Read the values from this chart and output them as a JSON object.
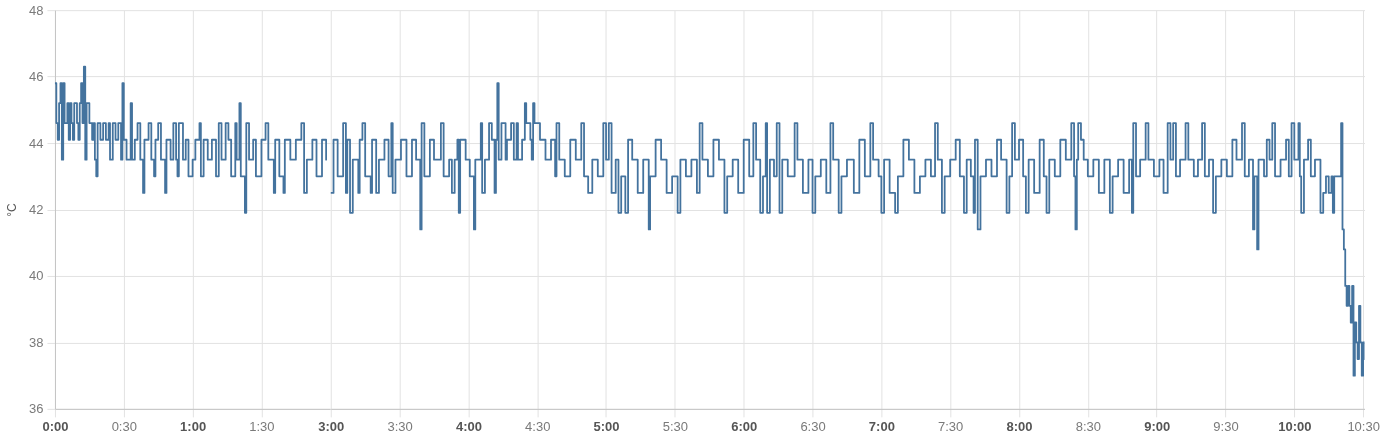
{
  "chart_data": [
    {
      "type": "step",
      "ylabel": "°C",
      "x": [
        0,
        0.01,
        0.02,
        0.03,
        0.04,
        0.05,
        0.06,
        0.07,
        0.09,
        0.1,
        0.11,
        0.12,
        0.13,
        0.14,
        0.16,
        0.17,
        0.18,
        0.19,
        0.2,
        0.21,
        0.22,
        0.23,
        0.25,
        0.27,
        0.28,
        0.29,
        0.3,
        0.31,
        0.33,
        0.35,
        0.37,
        0.39,
        0.4,
        0.42,
        0.44,
        0.46,
        0.48,
        0.49,
        0.5,
        0.52,
        0.55,
        0.56,
        0.58,
        0.6,
        0.62,
        0.64,
        0.65,
        0.68,
        0.7,
        0.72,
        0.73,
        0.75,
        0.77,
        0.8,
        0.81,
        0.84,
        0.86,
        0.88,
        0.89,
        0.9,
        0.93,
        0.95,
        0.97,
        1.0,
        1.02,
        1.05,
        1.06,
        1.08,
        1.11,
        1.14,
        1.17,
        1.19,
        1.21,
        1.24,
        1.26,
        1.28,
        1.31,
        1.32,
        1.34,
        1.35,
        1.38,
        1.39,
        1.41,
        1.44,
        1.46,
        1.5,
        1.53,
        1.55,
        1.59,
        1.6,
        1.63,
        1.66,
        1.67,
        1.71,
        1.75,
        1.79,
        1.81,
        1.83,
        1.87,
        1.9,
        1.94,
        1.97
      ],
      "series": [
        {
          "color": "#44739e",
          "values": [
            45.8,
            44.6,
            44.1,
            45.2,
            45.8,
            43.5,
            45.8,
            44.6,
            45.2,
            44.1,
            45.2,
            44.6,
            44.1,
            45.2,
            44.6,
            44.1,
            45.2,
            45.8,
            44.6,
            46.3,
            43.5,
            45.2,
            44.6,
            44.1,
            44.6,
            43.5,
            43.0,
            44.6,
            44.1,
            44.6,
            44.1,
            44.6,
            43.5,
            44.6,
            44.1,
            44.6,
            43.5,
            45.8,
            44.1,
            43.5,
            45.2,
            43.5,
            44.1,
            44.6,
            43.5,
            42.5,
            44.1,
            44.6,
            43.5,
            43.0,
            44.1,
            44.6,
            43.5,
            42.5,
            44.1,
            43.5,
            44.6,
            43.5,
            43.0,
            44.6,
            43.5,
            44.1,
            43.0,
            43.5,
            44.1,
            44.6,
            43.0,
            44.1,
            43.5,
            44.1,
            43.0,
            44.6,
            43.5,
            44.6,
            44.1,
            43.0,
            44.6,
            43.5,
            45.2,
            43.0,
            41.9,
            44.6,
            43.5,
            44.1,
            43.0,
            44.1,
            44.6,
            43.5,
            42.5,
            44.1,
            43.0,
            42.5,
            44.1,
            43.5,
            44.1,
            44.6,
            42.5,
            43.5,
            44.1,
            43.0,
            44.1,
            43.5
          ]
        }
      ],
      "xlim": [
        0,
        2
      ],
      "ylim": [
        36,
        48
      ],
      "xticks": [
        {
          "value": 0,
          "label": "0:00"
        },
        {
          "value": 0.5,
          "label": "0:30"
        },
        {
          "value": 1,
          "label": "1:00"
        },
        {
          "value": 1.5,
          "label": "1:30"
        }
      ],
      "yticks": [
        36,
        38,
        40,
        42,
        44,
        46,
        48
      ],
      "grid": true
    },
    {
      "type": "step",
      "x": [
        3.0,
        3.02,
        3.05,
        3.09,
        3.11,
        3.12,
        3.14,
        3.16,
        3.2,
        3.21,
        3.23,
        3.25,
        3.29,
        3.3,
        3.33,
        3.35,
        3.39,
        3.42,
        3.44,
        3.45,
        3.47,
        3.51,
        3.55,
        3.59,
        3.62,
        3.65,
        3.66,
        3.68,
        3.72,
        3.75,
        3.8,
        3.82,
        3.86,
        3.88,
        3.9,
        3.92,
        3.93,
        3.94,
        3.98,
        4.01,
        4.04,
        4.05,
        4.09,
        4.1,
        4.12,
        4.15,
        4.17,
        4.19,
        4.2,
        4.21,
        4.22,
        4.24,
        4.27,
        4.28,
        4.31,
        4.33,
        4.35,
        4.36,
        4.39,
        4.41,
        4.42,
        4.45,
        4.46,
        4.47,
        4.48,
        4.52,
        4.56,
        4.6,
        4.63,
        4.64,
        4.66,
        4.7,
        4.74,
        4.78,
        4.82,
        4.84,
        4.87,
        4.9,
        4.94,
        4.98,
        5.0,
        5.02,
        5.04,
        5.07,
        5.09,
        5.11,
        5.14,
        5.16,
        5.19,
        5.23,
        5.27,
        5.31,
        5.32,
        5.36,
        5.4,
        5.44,
        5.48,
        5.52,
        5.54,
        5.58,
        5.62,
        5.66,
        5.68,
        5.7,
        5.74,
        5.78,
        5.82,
        5.86,
        5.88,
        5.92,
        5.96,
        6.0,
        6.04,
        6.07,
        6.09,
        6.12,
        6.14,
        6.16,
        6.17,
        6.19,
        6.22,
        6.24,
        6.26,
        6.28,
        6.32,
        6.37,
        6.39,
        6.43,
        6.47,
        6.5,
        6.52,
        6.56,
        6.6,
        6.63,
        6.65,
        6.69,
        6.71,
        6.75,
        6.8,
        6.84,
        6.88,
        6.92,
        6.94,
        6.98,
        7.0,
        7.02,
        7.06,
        7.1,
        7.12,
        7.16,
        7.2,
        7.24,
        7.28,
        7.32,
        7.36,
        7.39,
        7.41,
        7.44,
        7.46,
        7.5,
        7.54,
        7.57,
        7.6,
        7.62,
        7.65,
        7.67,
        7.68,
        7.7,
        7.72,
        7.76,
        7.8,
        7.84,
        7.87,
        7.91,
        7.93,
        7.95,
        7.97,
        8.0,
        8.03,
        8.05,
        8.07,
        8.11,
        8.15,
        8.18,
        8.2,
        8.22,
        8.26,
        8.3,
        8.34,
        8.38,
        8.4,
        8.41,
        8.42,
        8.43,
        8.45,
        8.47,
        8.5,
        8.54,
        8.58,
        8.62,
        8.66,
        8.68,
        8.72,
        8.76,
        8.8,
        8.82,
        8.83,
        8.85,
        8.88,
        8.92,
        8.94,
        8.98,
        9.02,
        9.05,
        9.08,
        9.1,
        9.12,
        9.14,
        9.17,
        9.21,
        9.23,
        9.27,
        9.3,
        9.33,
        9.35,
        9.38,
        9.41,
        9.43,
        9.47,
        9.51,
        9.55,
        9.58,
        9.62,
        9.64,
        9.67,
        9.7,
        9.71,
        9.73,
        9.74,
        9.78,
        9.8,
        9.82,
        9.84,
        9.86,
        9.9,
        9.94,
        9.96,
        9.98,
        10.0,
        10.03,
        10.04,
        10.05,
        10.07,
        10.1,
        10.12,
        10.15,
        10.19,
        10.21,
        10.23,
        10.25,
        10.27,
        10.28,
        10.29,
        10.34,
        10.35,
        10.36,
        10.37,
        10.38,
        10.39,
        10.4,
        10.41,
        10.42,
        10.43,
        10.44,
        10.45,
        10.46,
        10.47,
        10.48,
        10.49,
        10.5,
        10.51
      ],
      "series": [
        {
          "color": "#44739e",
          "values": [
            42.5,
            44.1,
            43.0,
            44.6,
            42.5,
            44.1,
            41.9,
            43.5,
            42.5,
            44.1,
            44.6,
            43.0,
            42.5,
            44.1,
            42.5,
            43.5,
            44.1,
            43.0,
            44.6,
            42.5,
            43.5,
            44.1,
            43.0,
            44.1,
            43.5,
            41.4,
            44.6,
            43.0,
            44.1,
            43.5,
            44.6,
            43.0,
            43.5,
            42.5,
            43.5,
            44.1,
            41.9,
            44.1,
            43.5,
            43.0,
            41.4,
            43.5,
            44.6,
            42.5,
            43.5,
            44.6,
            44.1,
            42.5,
            44.1,
            45.8,
            43.5,
            44.6,
            43.5,
            44.1,
            44.6,
            43.5,
            44.6,
            43.5,
            44.1,
            45.2,
            44.6,
            44.1,
            43.5,
            45.2,
            44.6,
            44.1,
            43.5,
            44.1,
            43.0,
            44.6,
            43.5,
            43.0,
            44.1,
            43.5,
            44.6,
            43.0,
            42.5,
            43.5,
            43.0,
            44.6,
            43.5,
            44.6,
            42.5,
            43.5,
            41.9,
            43.0,
            41.9,
            44.1,
            43.5,
            42.5,
            43.5,
            41.4,
            43.0,
            44.1,
            43.5,
            42.5,
            43.0,
            41.9,
            43.5,
            43.0,
            43.5,
            42.5,
            44.6,
            43.5,
            43.0,
            44.1,
            43.5,
            41.9,
            43.0,
            43.5,
            42.5,
            44.1,
            43.0,
            44.6,
            43.5,
            41.9,
            43.0,
            44.6,
            41.9,
            43.5,
            43.0,
            44.6,
            41.9,
            43.5,
            43.0,
            44.6,
            43.5,
            42.5,
            43.5,
            41.9,
            43.0,
            43.5,
            42.5,
            44.6,
            43.5,
            41.9,
            43.0,
            43.5,
            42.5,
            44.1,
            43.0,
            44.6,
            43.5,
            43.0,
            41.9,
            43.5,
            42.5,
            41.9,
            43.0,
            44.1,
            43.5,
            42.5,
            43.0,
            43.5,
            43.0,
            44.6,
            43.5,
            41.9,
            43.0,
            43.5,
            44.1,
            43.0,
            41.9,
            43.5,
            43.0,
            41.9,
            44.1,
            41.4,
            43.0,
            43.5,
            43.0,
            44.1,
            43.5,
            41.9,
            43.0,
            44.6,
            43.5,
            44.1,
            43.0,
            41.9,
            43.5,
            42.5,
            44.1,
            43.0,
            41.9,
            43.5,
            43.0,
            44.1,
            43.5,
            44.6,
            43.0,
            41.4,
            43.5,
            44.6,
            44.1,
            43.5,
            43.0,
            43.5,
            42.5,
            43.5,
            41.9,
            43.0,
            43.5,
            42.5,
            43.5,
            41.9,
            44.6,
            43.0,
            43.5,
            44.6,
            43.5,
            43.0,
            43.5,
            42.5,
            44.6,
            43.5,
            44.6,
            43.0,
            43.5,
            44.6,
            43.5,
            43.0,
            43.5,
            44.6,
            43.0,
            43.5,
            41.9,
            43.0,
            43.5,
            43.0,
            44.1,
            43.5,
            44.6,
            43.0,
            43.5,
            41.4,
            43.0,
            40.8,
            43.5,
            43.0,
            44.1,
            43.5,
            44.6,
            43.0,
            43.5,
            44.1,
            43.0,
            44.6,
            43.5,
            44.6,
            43.0,
            41.9,
            43.5,
            44.1,
            43.0,
            43.5,
            41.9,
            42.5,
            43.0,
            42.5,
            43.0,
            41.9,
            43.0,
            44.6,
            41.4,
            40.8,
            39.7,
            39.1,
            39.7,
            39.1,
            38.6,
            39.7,
            37.0,
            38.6,
            38.0,
            37.5,
            39.1,
            38.0,
            37.0,
            38.0,
            37.5
          ]
        }
      ],
      "xlim": [
        3,
        10.51
      ],
      "ylim": [
        36,
        48
      ],
      "xticks": [
        {
          "value": 3,
          "label": "3:00"
        },
        {
          "value": 3.5,
          "label": "3:30"
        },
        {
          "value": 4,
          "label": "4:00"
        },
        {
          "value": 4.5,
          "label": "4:30"
        },
        {
          "value": 5,
          "label": "5:00"
        },
        {
          "value": 5.5,
          "label": "5:30"
        },
        {
          "value": 6,
          "label": "6:00"
        },
        {
          "value": 6.5,
          "label": "6:30"
        },
        {
          "value": 7,
          "label": "7:00"
        },
        {
          "value": 7.5,
          "label": "7:30"
        },
        {
          "value": 8,
          "label": "8:00"
        },
        {
          "value": 8.5,
          "label": "8:30"
        },
        {
          "value": 9,
          "label": "9:00"
        },
        {
          "value": 9.5,
          "label": "9:30"
        },
        {
          "value": 10,
          "label": "10:00"
        },
        {
          "value": 10.5,
          "label": "10:30"
        }
      ],
      "yticks": [
        36,
        38,
        40,
        42,
        44,
        46,
        48
      ],
      "tick_labels": "x",
      "grid": true
    }
  ]
}
